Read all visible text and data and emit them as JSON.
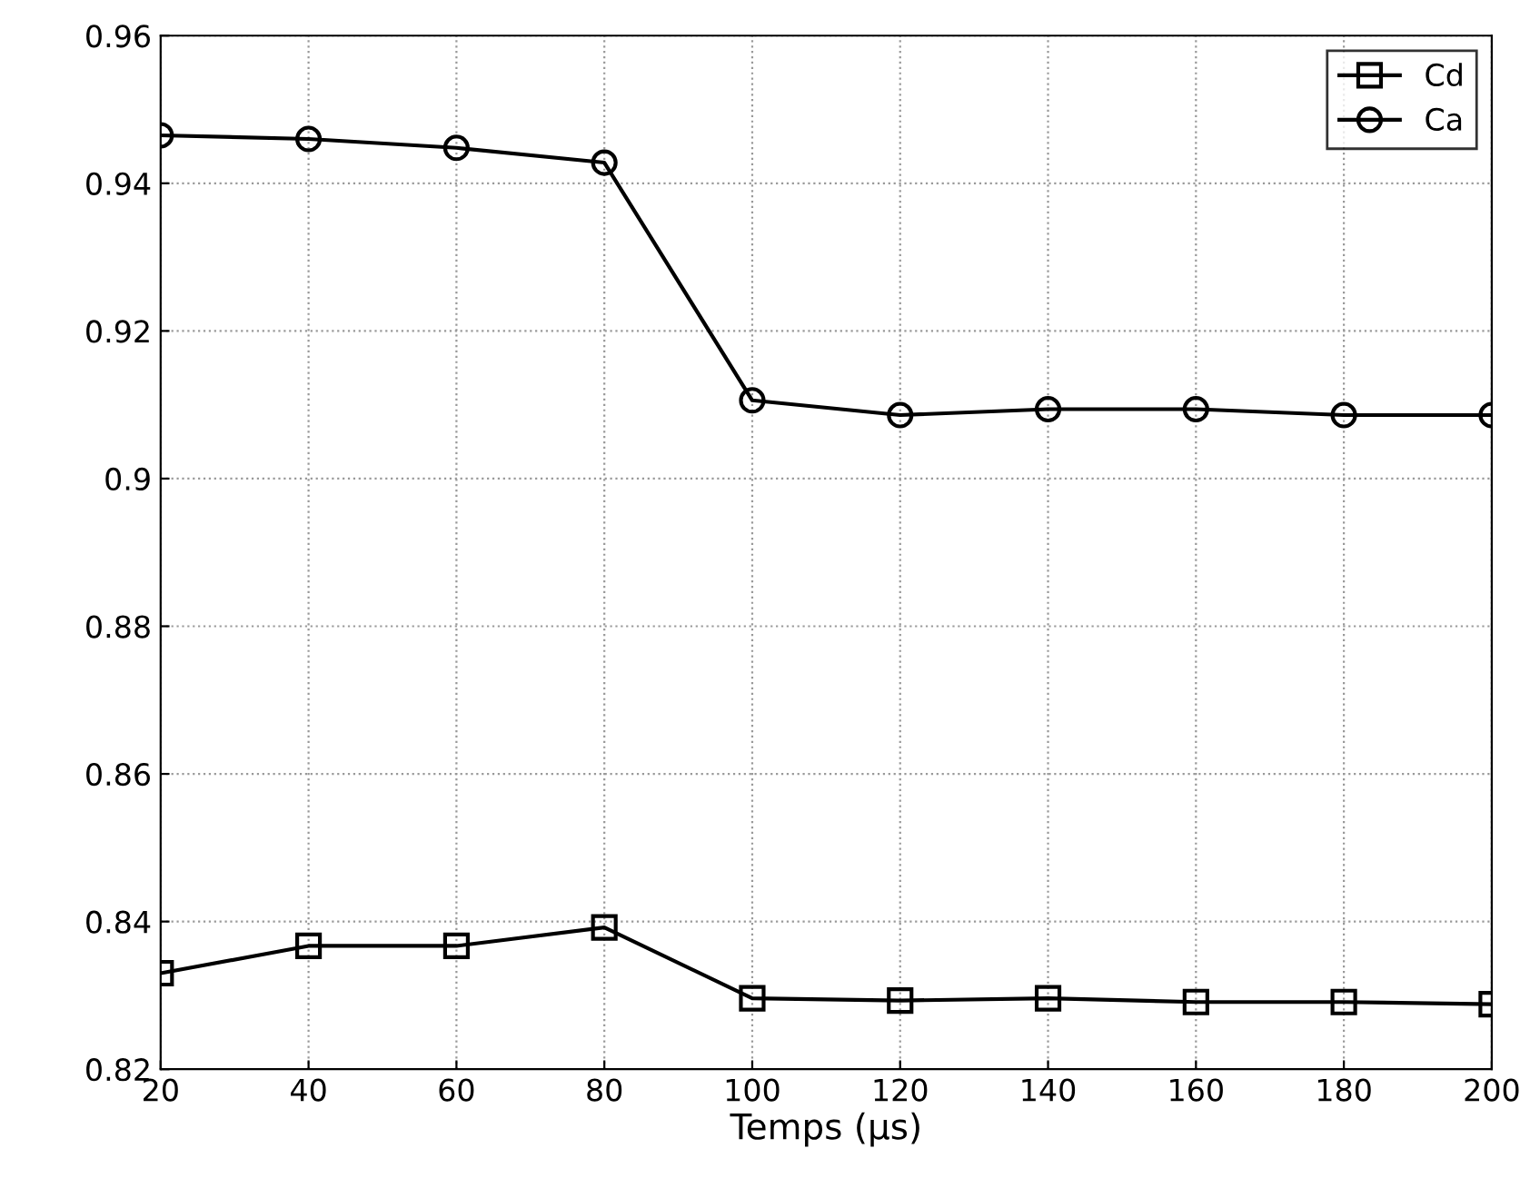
{
  "chart_data": {
    "type": "line",
    "xlabel": "Temps (µs)",
    "x": [
      20,
      40,
      60,
      80,
      100,
      120,
      140,
      160,
      180,
      200
    ],
    "series": [
      {
        "name": "Cd",
        "color": "#000000",
        "marker": "square",
        "values": [
          0.833,
          0.8367,
          0.8367,
          0.8392,
          0.8296,
          0.8293,
          0.8296,
          0.8291,
          0.8291,
          0.8288
        ]
      },
      {
        "name": "Ca",
        "color": "#000000",
        "marker": "circle",
        "values": [
          0.9465,
          0.946,
          0.9448,
          0.9428,
          0.9106,
          0.9086,
          0.9094,
          0.9094,
          0.9086,
          0.9086
        ]
      }
    ],
    "xlim": [
      20,
      200
    ],
    "xticks": [
      20,
      40,
      60,
      80,
      100,
      120,
      140,
      160,
      180,
      200
    ],
    "ylim": [
      0.82,
      0.96
    ],
    "yticks": [
      0.82,
      0.84,
      0.86,
      0.88,
      0.9,
      0.92,
      0.94,
      0.96
    ],
    "grid": true,
    "legend": "top right",
    "line_style": "solid"
  }
}
